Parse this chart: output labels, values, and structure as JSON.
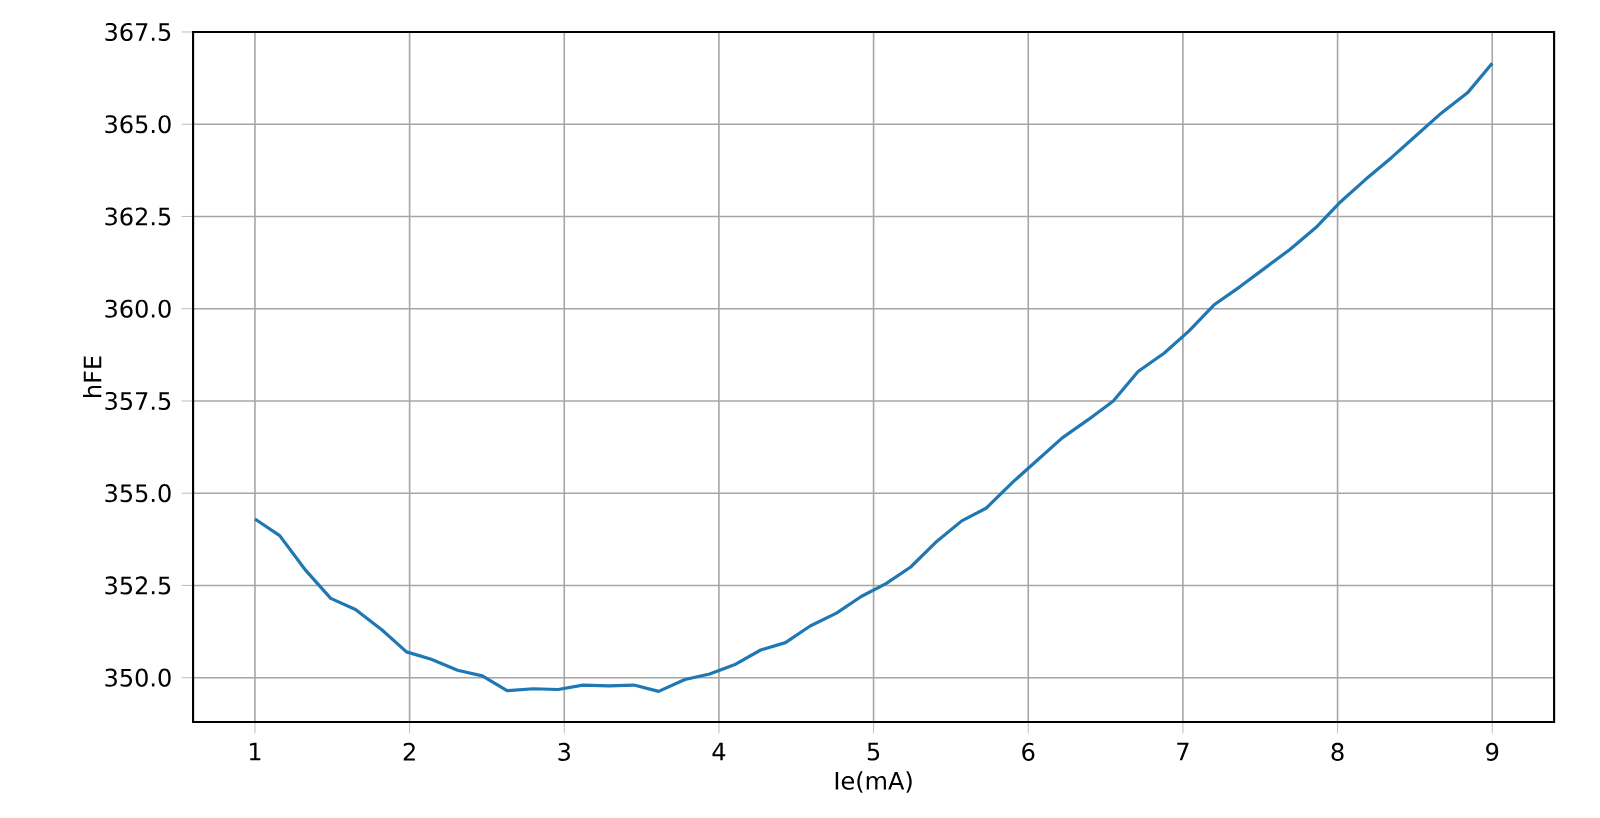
{
  "chart_data": {
    "type": "line",
    "xlabel": "Ie(mA)",
    "ylabel": "hFE",
    "x": [
      1,
      1.16,
      1.33,
      1.49,
      1.65,
      1.82,
      1.98,
      2.14,
      2.31,
      2.47,
      2.63,
      2.8,
      2.96,
      3.12,
      3.29,
      3.45,
      3.61,
      3.78,
      3.94,
      4.1,
      4.27,
      4.43,
      4.59,
      4.76,
      4.92,
      5.08,
      5.24,
      5.41,
      5.57,
      5.73,
      5.9,
      6.06,
      6.22,
      6.39,
      6.55,
      6.71,
      6.88,
      7.04,
      7.2,
      7.37,
      7.53,
      7.69,
      7.86,
      8.02,
      8.18,
      8.35,
      8.51,
      8.67,
      8.84,
      9
    ],
    "series": [
      {
        "color": "#1f77b4",
        "values": [
          354.3,
          353.85,
          352.9,
          352.15,
          351.85,
          351.3,
          350.7,
          350.5,
          350.2,
          350.05,
          349.65,
          349.7,
          349.68,
          349.8,
          349.78,
          349.8,
          349.63,
          349.95,
          350.1,
          350.35,
          350.75,
          350.95,
          351.4,
          351.75,
          352.2,
          352.55,
          353.0,
          353.7,
          354.25,
          354.6,
          355.3,
          355.9,
          356.5,
          357.0,
          357.5,
          358.3,
          358.8,
          359.4,
          360.1,
          360.6,
          361.1,
          361.6,
          362.2,
          362.9,
          363.5,
          364.1,
          364.7,
          365.3,
          365.85,
          366.65
        ]
      }
    ],
    "xlim": [
      0.6,
      9.4
    ],
    "ylim": [
      348.8,
      367.5
    ],
    "xticks": [
      1,
      2,
      3,
      4,
      5,
      6,
      7,
      8,
      9
    ],
    "yticks": [
      {
        "value": 350,
        "label": "350.0"
      },
      {
        "value": 352.5,
        "label": "352.5"
      },
      {
        "value": 355,
        "label": "355.0"
      },
      {
        "value": 357.5,
        "label": "357.5"
      },
      {
        "value": 360,
        "label": "360.0"
      },
      {
        "value": 362.5,
        "label": "362.5"
      },
      {
        "value": 365,
        "label": "365.0"
      },
      {
        "value": 367.5,
        "label": "367.5"
      }
    ],
    "grid": true
  }
}
